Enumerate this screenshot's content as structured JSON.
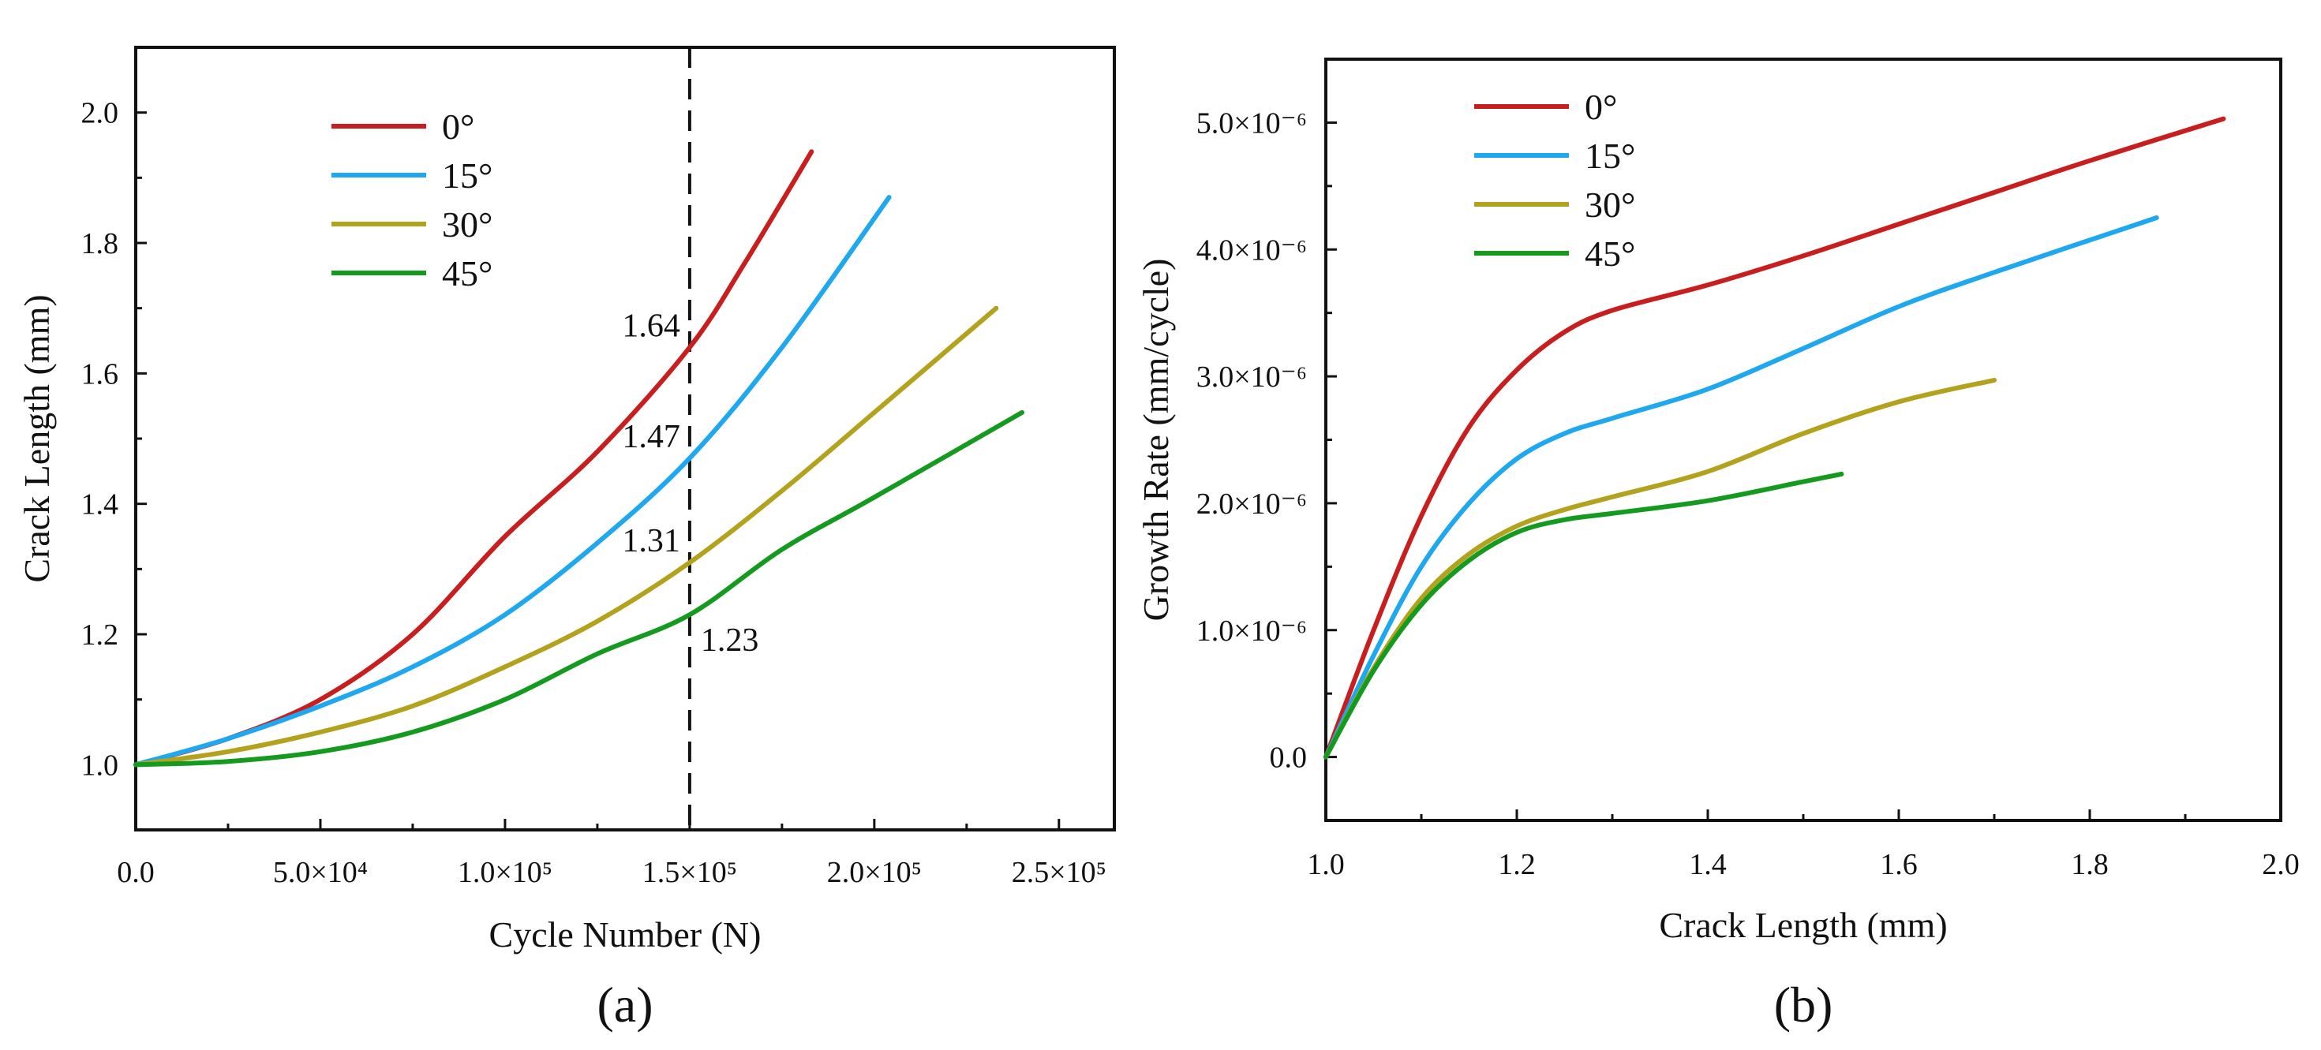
{
  "colors": {
    "0°": "#c81e1e",
    "15°": "#1fa7ef",
    "30°": "#b3a21e",
    "45°": "#149a1e"
  },
  "chart_data": [
    {
      "type": "line",
      "panel_label": "(a)",
      "xlabel": "Cycle Number (N)",
      "ylabel": "Crack  Length (mm)",
      "xlim": [
        0,
        265000
      ],
      "ylim": [
        0.9,
        2.1
      ],
      "x_ticks": [
        {
          "value": 0,
          "label": "0.0"
        },
        {
          "value": 50000,
          "label": "5.0×10⁴"
        },
        {
          "value": 100000,
          "label": "1.0×10⁵"
        },
        {
          "value": 150000,
          "label": "1.5×10⁵"
        },
        {
          "value": 200000,
          "label": "2.0×10⁵"
        },
        {
          "value": 250000,
          "label": "2.5×10⁵"
        }
      ],
      "y_ticks": [
        {
          "value": 1.0,
          "label": "1.0"
        },
        {
          "value": 1.2,
          "label": "1.2"
        },
        {
          "value": 1.4,
          "label": "1.4"
        },
        {
          "value": 1.6,
          "label": "1.6"
        },
        {
          "value": 1.8,
          "label": "1.8"
        },
        {
          "value": 2.0,
          "label": "2.0"
        }
      ],
      "legend_position": "top-left",
      "reference_line": {
        "x": 150000,
        "style": "dashed"
      },
      "annotations": [
        {
          "text": "1.64",
          "x": 150000,
          "y": 1.64,
          "side": "left"
        },
        {
          "text": "1.47",
          "x": 150000,
          "y": 1.47,
          "side": "left"
        },
        {
          "text": "1.31",
          "x": 150000,
          "y": 1.31,
          "side": "left"
        },
        {
          "text": "1.23",
          "x": 150000,
          "y": 1.23,
          "side": "right"
        }
      ],
      "series": [
        {
          "name": "0°",
          "x": [
            0,
            25000,
            50000,
            75000,
            100000,
            125000,
            150000,
            165000,
            183000
          ],
          "y": [
            1.0,
            1.04,
            1.1,
            1.2,
            1.35,
            1.48,
            1.64,
            1.77,
            1.94
          ]
        },
        {
          "name": "15°",
          "x": [
            0,
            25000,
            50000,
            75000,
            100000,
            125000,
            150000,
            175000,
            204000
          ],
          "y": [
            1.0,
            1.04,
            1.09,
            1.15,
            1.23,
            1.34,
            1.47,
            1.64,
            1.87
          ]
        },
        {
          "name": "30°",
          "x": [
            0,
            25000,
            50000,
            75000,
            100000,
            125000,
            150000,
            175000,
            200000,
            233000
          ],
          "y": [
            1.0,
            1.02,
            1.05,
            1.09,
            1.15,
            1.22,
            1.31,
            1.42,
            1.54,
            1.7
          ]
        },
        {
          "name": "45°",
          "x": [
            0,
            25000,
            50000,
            75000,
            100000,
            125000,
            150000,
            175000,
            200000,
            240000
          ],
          "y": [
            1.0,
            1.005,
            1.02,
            1.05,
            1.1,
            1.17,
            1.23,
            1.33,
            1.41,
            1.54
          ]
        }
      ]
    },
    {
      "type": "line",
      "panel_label": "(b)",
      "xlabel": "Crack  Length (mm)",
      "ylabel": "Growth Rate (mm/cycle)",
      "xlim": [
        1.0,
        2.0
      ],
      "ylim": [
        -5e-07,
        5.5e-06
      ],
      "x_ticks": [
        {
          "value": 1.0,
          "label": "1.0"
        },
        {
          "value": 1.2,
          "label": "1.2"
        },
        {
          "value": 1.4,
          "label": "1.4"
        },
        {
          "value": 1.6,
          "label": "1.6"
        },
        {
          "value": 1.8,
          "label": "1.8"
        },
        {
          "value": 2.0,
          "label": "2.0"
        }
      ],
      "y_ticks": [
        {
          "value": 0,
          "label": "0.0"
        },
        {
          "value": 1e-06,
          "label": "1.0×10⁻⁶"
        },
        {
          "value": 2e-06,
          "label": "2.0×10⁻⁶"
        },
        {
          "value": 3e-06,
          "label": "3.0×10⁻⁶"
        },
        {
          "value": 4e-06,
          "label": "4.0×10⁻⁶"
        },
        {
          "value": 5e-06,
          "label": "5.0×10⁻⁶"
        }
      ],
      "legend_position": "top-left",
      "series": [
        {
          "name": "0°",
          "x": [
            1.0,
            1.05,
            1.1,
            1.15,
            1.2,
            1.25,
            1.3,
            1.4,
            1.5,
            1.6,
            1.7,
            1.8,
            1.94
          ],
          "y": [
            0,
            1e-06,
            1.9e-06,
            2.6e-06,
            3.05e-06,
            3.35e-06,
            3.52e-06,
            3.72e-06,
            3.95e-06,
            4.2e-06,
            4.45e-06,
            4.7e-06,
            5.03e-06
          ]
        },
        {
          "name": "15°",
          "x": [
            1.0,
            1.05,
            1.1,
            1.15,
            1.2,
            1.25,
            1.3,
            1.4,
            1.5,
            1.6,
            1.7,
            1.87
          ],
          "y": [
            0,
            8e-07,
            1.5e-06,
            2e-06,
            2.35e-06,
            2.55e-06,
            2.67e-06,
            2.9e-06,
            3.22e-06,
            3.55e-06,
            3.82e-06,
            4.25e-06
          ]
        },
        {
          "name": "30°",
          "x": [
            1.0,
            1.05,
            1.1,
            1.15,
            1.2,
            1.25,
            1.3,
            1.4,
            1.5,
            1.6,
            1.7
          ],
          "y": [
            0,
            7e-07,
            1.25e-06,
            1.6e-06,
            1.82e-06,
            1.95e-06,
            2.05e-06,
            2.25e-06,
            2.55e-06,
            2.8e-06,
            2.97e-06
          ]
        },
        {
          "name": "45°",
          "x": [
            1.0,
            1.05,
            1.1,
            1.15,
            1.2,
            1.25,
            1.3,
            1.4,
            1.5,
            1.54
          ],
          "y": [
            0,
            6.8e-07,
            1.2e-06,
            1.55e-06,
            1.77e-06,
            1.87e-06,
            1.92e-06,
            2.02e-06,
            2.17e-06,
            2.23e-06
          ]
        }
      ]
    }
  ]
}
